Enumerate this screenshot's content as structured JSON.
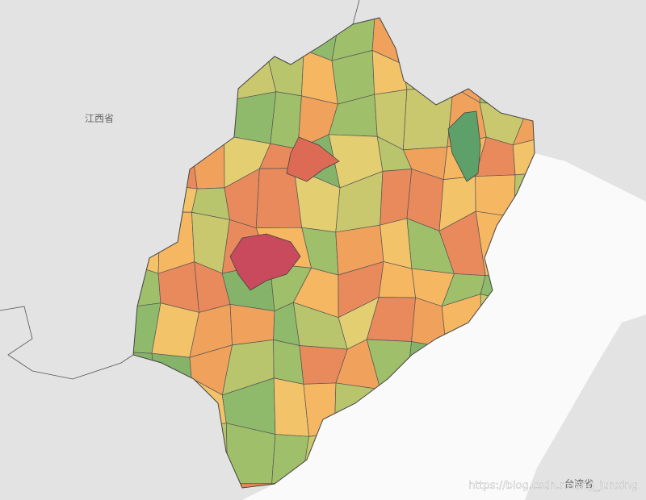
{
  "labels": {
    "jiangxi": "江西省",
    "taiwan": "台湾省"
  },
  "watermark": "https://blog.csdn.net/ng_junxing"
}
